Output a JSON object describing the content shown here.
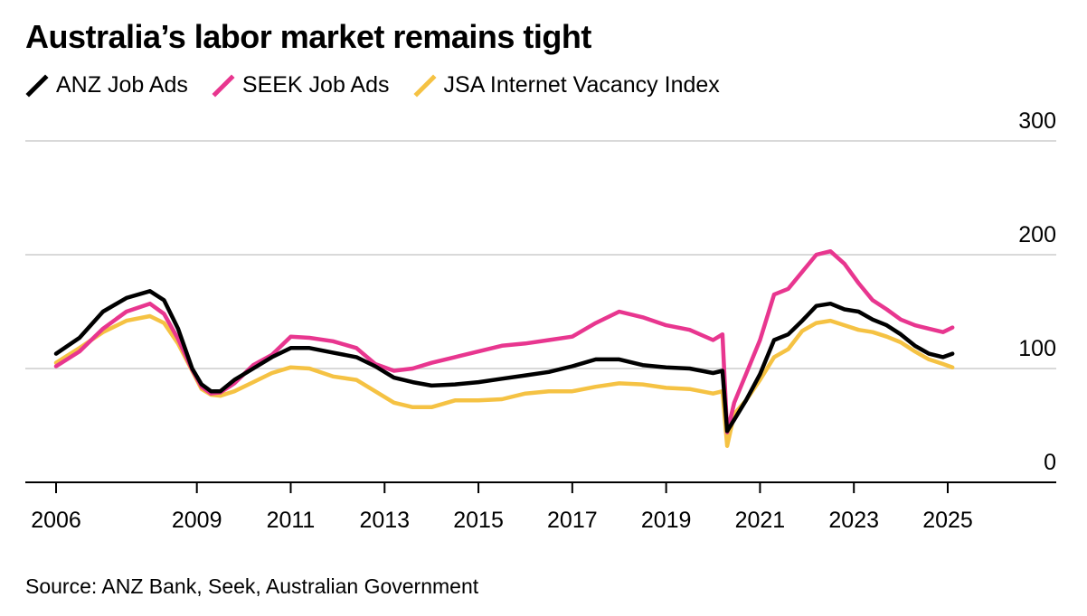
{
  "title": "Australia’s labor market remains tight",
  "source": "Source: ANZ Bank, Seek, Australian Government",
  "chart_data": {
    "type": "line",
    "title": "Australia’s labor market remains tight",
    "xlabel": "",
    "ylabel": "",
    "xlim": [
      2005.8,
      2027.0
    ],
    "ylim": [
      0,
      300
    ],
    "grid": true,
    "legend_position": "top-left",
    "x_ticks": [
      2006,
      2009,
      2011,
      2013,
      2015,
      2017,
      2019,
      2021,
      2023,
      2025
    ],
    "y_ticks": [
      0,
      100,
      200,
      300
    ],
    "series": [
      {
        "name": "JSA Internet Vacancy Index",
        "color": "#f5c243",
        "x": [
          2006.0,
          2006.5,
          2007.0,
          2007.5,
          2008.0,
          2008.3,
          2008.6,
          2008.9,
          2009.1,
          2009.3,
          2009.5,
          2009.8,
          2010.2,
          2010.6,
          2011.0,
          2011.4,
          2011.9,
          2012.4,
          2012.8,
          2013.2,
          2013.6,
          2014.0,
          2014.5,
          2015.0,
          2015.5,
          2016.0,
          2016.5,
          2017.0,
          2017.5,
          2018.0,
          2018.5,
          2019.0,
          2019.5,
          2020.0,
          2020.2,
          2020.3,
          2020.45,
          2020.7,
          2021.0,
          2021.3,
          2021.6,
          2021.9,
          2022.2,
          2022.5,
          2022.8,
          2023.1,
          2023.4,
          2023.7,
          2024.0,
          2024.3,
          2024.6,
          2024.9,
          2025.1
        ],
        "values": [
          105,
          118,
          132,
          142,
          146,
          140,
          122,
          98,
          82,
          77,
          76,
          80,
          88,
          96,
          101,
          100,
          93,
          90,
          80,
          70,
          66,
          66,
          72,
          72,
          73,
          78,
          80,
          80,
          84,
          87,
          86,
          83,
          82,
          78,
          80,
          32,
          60,
          72,
          90,
          110,
          117,
          133,
          140,
          142,
          138,
          134,
          132,
          128,
          123,
          115,
          108,
          104,
          101
        ]
      },
      {
        "name": "SEEK Job Ads",
        "color": "#e8368f",
        "x": [
          2006.0,
          2006.5,
          2007.0,
          2007.5,
          2008.0,
          2008.3,
          2008.6,
          2008.9,
          2009.1,
          2009.3,
          2009.5,
          2009.8,
          2010.2,
          2010.6,
          2011.0,
          2011.4,
          2011.9,
          2012.4,
          2012.8,
          2013.2,
          2013.6,
          2014.0,
          2014.5,
          2015.0,
          2015.5,
          2016.0,
          2016.5,
          2017.0,
          2017.5,
          2018.0,
          2018.5,
          2019.0,
          2019.5,
          2020.0,
          2020.2,
          2020.3,
          2020.45,
          2020.7,
          2021.0,
          2021.3,
          2021.6,
          2021.9,
          2022.2,
          2022.5,
          2022.8,
          2023.1,
          2023.4,
          2023.7,
          2024.0,
          2024.3,
          2024.6,
          2024.9,
          2025.1
        ],
        "values": [
          102,
          115,
          135,
          150,
          157,
          148,
          126,
          99,
          84,
          78,
          79,
          87,
          103,
          112,
          128,
          127,
          124,
          118,
          104,
          98,
          100,
          105,
          110,
          115,
          120,
          122,
          125,
          128,
          140,
          150,
          145,
          138,
          134,
          125,
          130,
          44,
          70,
          95,
          125,
          165,
          170,
          185,
          200,
          203,
          192,
          175,
          160,
          152,
          143,
          138,
          135,
          132,
          136
        ]
      },
      {
        "name": "ANZ Job Ads",
        "color": "#000000",
        "x": [
          2006.0,
          2006.5,
          2007.0,
          2007.5,
          2008.0,
          2008.3,
          2008.6,
          2008.9,
          2009.1,
          2009.3,
          2009.5,
          2009.8,
          2010.2,
          2010.6,
          2011.0,
          2011.4,
          2011.9,
          2012.4,
          2012.8,
          2013.2,
          2013.6,
          2014.0,
          2014.5,
          2015.0,
          2015.5,
          2016.0,
          2016.5,
          2017.0,
          2017.5,
          2018.0,
          2018.5,
          2019.0,
          2019.5,
          2020.0,
          2020.2,
          2020.3,
          2020.45,
          2020.7,
          2021.0,
          2021.3,
          2021.6,
          2021.9,
          2022.2,
          2022.5,
          2022.8,
          2023.1,
          2023.4,
          2023.7,
          2024.0,
          2024.3,
          2024.6,
          2024.9,
          2025.1
        ],
        "values": [
          113,
          127,
          150,
          162,
          168,
          160,
          135,
          100,
          86,
          80,
          80,
          90,
          100,
          110,
          118,
          118,
          114,
          110,
          102,
          92,
          88,
          85,
          86,
          88,
          91,
          94,
          97,
          102,
          108,
          108,
          103,
          101,
          100,
          96,
          98,
          45,
          55,
          72,
          95,
          125,
          130,
          142,
          155,
          157,
          152,
          150,
          143,
          138,
          130,
          120,
          113,
          110,
          113
        ]
      }
    ]
  }
}
